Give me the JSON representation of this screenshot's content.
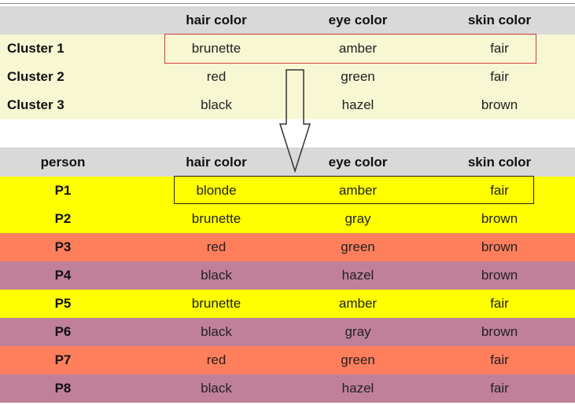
{
  "clusters": {
    "header": [
      "",
      "hair color",
      "eye color",
      "skin color"
    ],
    "rows": [
      {
        "label": "Cluster 1",
        "hair": "brunette",
        "eye": "amber",
        "skin": "fair"
      },
      {
        "label": "Cluster 2",
        "hair": "red",
        "eye": "green",
        "skin": "fair"
      },
      {
        "label": "Cluster 3",
        "hair": "black",
        "eye": "hazel",
        "skin": "brown"
      }
    ]
  },
  "persons": {
    "header": [
      "person",
      "hair color",
      "eye color",
      "skin color"
    ],
    "rows": [
      {
        "label": "P1",
        "hair": "blonde",
        "eye": "amber",
        "skin": "fair",
        "color": "#ffff00"
      },
      {
        "label": "P2",
        "hair": "brunette",
        "eye": "gray",
        "skin": "brown",
        "color": "#ffff00"
      },
      {
        "label": "P3",
        "hair": "red",
        "eye": "green",
        "skin": "brown",
        "color": "#ff7f5c"
      },
      {
        "label": "P4",
        "hair": "black",
        "eye": "hazel",
        "skin": "brown",
        "color": "#c08099"
      },
      {
        "label": "P5",
        "hair": "brunette",
        "eye": "amber",
        "skin": "fair",
        "color": "#ffff00"
      },
      {
        "label": "P6",
        "hair": "black",
        "eye": "gray",
        "skin": "brown",
        "color": "#c08099"
      },
      {
        "label": "P7",
        "hair": "red",
        "eye": "green",
        "skin": "fair",
        "color": "#ff7f5c"
      },
      {
        "label": "P8",
        "hair": "black",
        "eye": "hazel",
        "skin": "fair",
        "color": "#c08099"
      }
    ]
  },
  "colors": {
    "header_bg": "#d9d9d9",
    "cluster_bg": "#f7f7d4",
    "cluster_box": "#d9383a",
    "person_box": "#222222"
  }
}
